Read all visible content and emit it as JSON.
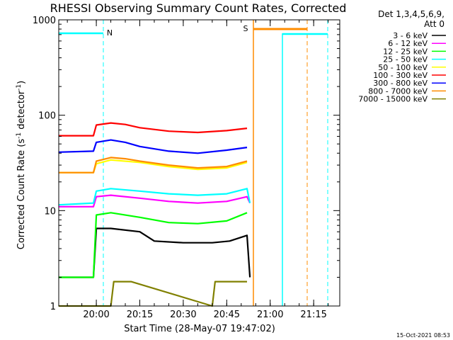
{
  "header": {
    "title": "RHESSI Observing Summary Count Rates, Corrected",
    "footer_date": "15-Oct-2021 08:53"
  },
  "legend": {
    "detector_line1": "Det 1,3,4,5,6,9,",
    "detector_line2": "Att 0"
  },
  "chart_data": {
    "type": "line",
    "title": "RHESSI Observing Summary Count Rates, Corrected",
    "xlabel": "Start Time (28-May-07 19:47:02)",
    "ylabel": "Corrected Count Rate (s⁻¹ detector⁻¹)",
    "y_scale": "log",
    "ylim": [
      1,
      1000
    ],
    "xlim": [
      "19:47:02",
      "21:24:00"
    ],
    "x_ticks": [
      "20:00",
      "20:15",
      "20:30",
      "20:45",
      "21:00",
      "21:15"
    ],
    "y_ticks": [
      "1",
      "10",
      "100",
      "1000"
    ],
    "grid": false,
    "legend_position": "right",
    "series": [
      {
        "name": "3 - 6 keV",
        "color": "#000000",
        "x": [
          "19:47",
          "19:59",
          "20:00",
          "20:05",
          "20:15",
          "20:20",
          "20:30",
          "20:40",
          "20:46",
          "20:52",
          "20:53"
        ],
        "y": [
          2,
          2,
          6.5,
          6.5,
          6,
          4.8,
          4.6,
          4.6,
          4.8,
          5.5,
          2
        ]
      },
      {
        "name": "6 - 12 keV",
        "color": "#ff00ff",
        "x": [
          "19:47",
          "19:59",
          "20:00",
          "20:05",
          "20:15",
          "20:25",
          "20:35",
          "20:45",
          "20:52",
          "20:53"
        ],
        "y": [
          11,
          11,
          14,
          14.5,
          13.5,
          12.5,
          12,
          12.5,
          14,
          12
        ]
      },
      {
        "name": "12 - 25 keV",
        "color": "#00ff00",
        "x": [
          "19:47",
          "19:59",
          "20:00",
          "20:05",
          "20:15",
          "20:25",
          "20:35",
          "20:45",
          "20:52"
        ],
        "y": [
          2,
          2,
          9,
          9.5,
          8.5,
          7.5,
          7.3,
          7.8,
          9.5
        ]
      },
      {
        "name": "25 - 50 keV",
        "color": "#00ffff",
        "x": [
          "19:47",
          "19:59",
          "20:00",
          "20:05",
          "20:15",
          "20:25",
          "20:35",
          "20:45",
          "20:52",
          "20:53"
        ],
        "y": [
          11.5,
          12,
          16,
          17,
          16,
          15,
          14.5,
          15,
          17,
          12
        ]
      },
      {
        "name": "50 - 100 keV",
        "color": "#ffff00",
        "x": [
          "19:47",
          "19:59",
          "20:00",
          "20:05",
          "20:15",
          "20:25",
          "20:35",
          "20:45",
          "20:52"
        ],
        "y": [
          25,
          25,
          31,
          34,
          32,
          29,
          27,
          28,
          32
        ]
      },
      {
        "name": "100 - 300 keV",
        "color": "#ff0000",
        "x": [
          "19:47",
          "19:59",
          "20:00",
          "20:05",
          "20:10",
          "20:15",
          "20:25",
          "20:35",
          "20:45",
          "20:52"
        ],
        "y": [
          61,
          61,
          79,
          83,
          80,
          74,
          68,
          66,
          69,
          73
        ]
      },
      {
        "name": "300 - 800 keV",
        "color": "#0000ff",
        "x": [
          "19:47",
          "19:59",
          "20:00",
          "20:05",
          "20:10",
          "20:15",
          "20:25",
          "20:35",
          "20:45",
          "20:52"
        ],
        "y": [
          41,
          42,
          52,
          55,
          52,
          47,
          42,
          40,
          43,
          46
        ]
      },
      {
        "name": "800 - 7000 keV",
        "color": "#ff8c00",
        "x": [
          "19:47",
          "19:59",
          "20:00",
          "20:05",
          "20:10",
          "20:15",
          "20:25",
          "20:35",
          "20:45",
          "20:52"
        ],
        "y": [
          25,
          25,
          33,
          36,
          35,
          33,
          30,
          28,
          29,
          33
        ]
      },
      {
        "name": "7000 - 15000 keV",
        "color": "#808000",
        "x": [
          "19:47",
          "20:05",
          "20:06",
          "20:12",
          "20:40",
          "20:41",
          "20:52"
        ],
        "y": [
          1,
          1,
          1.8,
          1.8,
          1,
          1.8,
          1.8
        ]
      }
    ],
    "annotations": [
      {
        "label": "N",
        "color": "#00ffff"
      },
      {
        "label": "S",
        "color": "#ff8c00"
      }
    ]
  }
}
